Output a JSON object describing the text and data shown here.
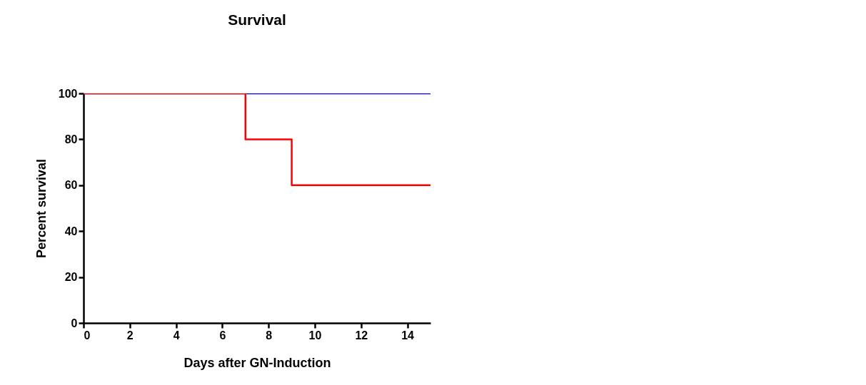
{
  "chart_data": {
    "type": "step",
    "title": "Survival",
    "xlabel": "Days after GN-Induction",
    "ylabel": "Percent survival",
    "xlim": [
      0,
      15
    ],
    "xticks": [
      0,
      2,
      4,
      6,
      8,
      10,
      12,
      14
    ],
    "ylim": [
      0,
      100
    ],
    "yticks": [
      0,
      20,
      40,
      60,
      80,
      100
    ],
    "grid": false,
    "legend": false,
    "series": [
      {
        "color": "#0000ff",
        "x": [
          0,
          15
        ],
        "values": [
          100,
          100
        ]
      },
      {
        "color": "#ff0000",
        "x": [
          0,
          7,
          9,
          15
        ],
        "values": [
          100,
          80,
          60,
          60
        ]
      }
    ]
  }
}
